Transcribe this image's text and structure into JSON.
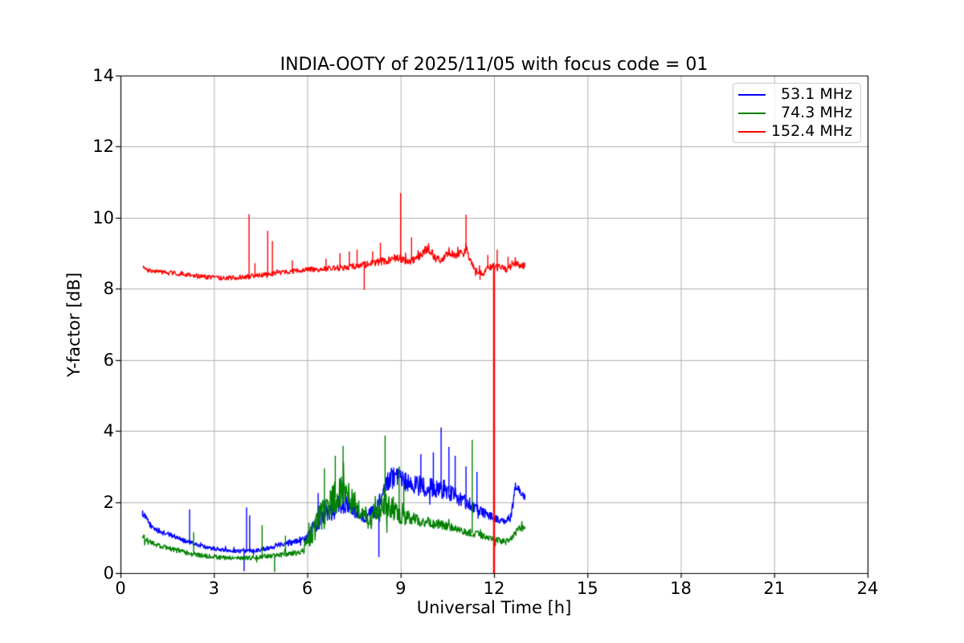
{
  "chart_data": {
    "type": "line",
    "title": "INDIA-OOTY of 2025/11/05 with focus code = 01",
    "xlabel": "Universal Time [h]",
    "ylabel": "Y-factor [dB]",
    "xlim": [
      0,
      24
    ],
    "ylim": [
      0,
      14
    ],
    "x_ticks": [
      0,
      3,
      6,
      9,
      12,
      15,
      18,
      21,
      24
    ],
    "y_ticks": [
      0,
      2,
      4,
      6,
      8,
      10,
      12,
      14
    ],
    "grid": true,
    "legend_position": "upper right",
    "colors": {
      "background": "#ffffff",
      "grid": "#b0b0b0",
      "axis": "#000000",
      "text": "#000000"
    },
    "series": [
      {
        "name": "53.1 MHz",
        "color": "#0000ff",
        "x_start": 0.7,
        "x_end": 13.0,
        "baseline": [
          [
            0.7,
            1.7,
            0.1
          ],
          [
            0.85,
            1.5,
            0.1
          ],
          [
            1.0,
            1.3,
            0.09
          ],
          [
            1.3,
            1.15,
            0.08
          ],
          [
            1.7,
            1.05,
            0.07
          ],
          [
            2.1,
            0.9,
            0.07
          ],
          [
            2.5,
            0.78,
            0.06
          ],
          [
            2.9,
            0.7,
            0.06
          ],
          [
            3.3,
            0.65,
            0.06
          ],
          [
            3.7,
            0.62,
            0.06
          ],
          [
            4.1,
            0.62,
            0.06
          ],
          [
            4.5,
            0.66,
            0.07
          ],
          [
            4.9,
            0.75,
            0.08
          ],
          [
            5.3,
            0.85,
            0.08
          ],
          [
            5.7,
            0.92,
            0.09
          ],
          [
            6.0,
            1.0,
            0.12
          ],
          [
            6.2,
            1.3,
            0.2
          ],
          [
            6.5,
            1.55,
            0.28
          ],
          [
            6.8,
            1.75,
            0.3
          ],
          [
            7.1,
            1.95,
            0.3
          ],
          [
            7.3,
            1.9,
            0.28
          ],
          [
            7.6,
            1.7,
            0.22
          ],
          [
            7.9,
            1.6,
            0.2
          ],
          [
            8.2,
            1.75,
            0.22
          ],
          [
            8.45,
            2.2,
            0.3
          ],
          [
            8.65,
            2.7,
            0.33
          ],
          [
            8.9,
            2.65,
            0.3
          ],
          [
            9.2,
            2.55,
            0.3
          ],
          [
            9.6,
            2.45,
            0.3
          ],
          [
            10.0,
            2.4,
            0.28
          ],
          [
            10.4,
            2.35,
            0.3
          ],
          [
            10.8,
            2.15,
            0.25
          ],
          [
            11.2,
            1.95,
            0.2
          ],
          [
            11.6,
            1.72,
            0.15
          ],
          [
            12.0,
            1.55,
            0.12
          ],
          [
            12.3,
            1.45,
            0.1
          ],
          [
            12.55,
            1.55,
            0.15
          ],
          [
            12.68,
            2.4,
            0.18
          ],
          [
            12.8,
            2.35,
            0.15
          ],
          [
            13.0,
            2.15,
            0.12
          ]
        ],
        "spikes": [
          [
            2.22,
            1.79
          ],
          [
            3.97,
            0.05
          ],
          [
            4.05,
            1.85
          ],
          [
            4.15,
            1.62
          ],
          [
            6.35,
            2.25
          ],
          [
            7.15,
            2.6
          ],
          [
            8.3,
            0.45
          ],
          [
            9.65,
            3.35
          ],
          [
            10.05,
            3.4
          ],
          [
            10.3,
            4.1
          ],
          [
            10.55,
            3.55
          ],
          [
            10.75,
            3.3
          ],
          [
            11.1,
            3.0
          ],
          [
            11.45,
            2.85
          ]
        ],
        "vertical_drops": []
      },
      {
        "name": "74.3 MHz",
        "color": "#008000",
        "x_start": 0.7,
        "x_end": 13.0,
        "baseline": [
          [
            0.7,
            1.02,
            0.1
          ],
          [
            0.9,
            0.88,
            0.09
          ],
          [
            1.2,
            0.78,
            0.08
          ],
          [
            1.6,
            0.68,
            0.08
          ],
          [
            2.0,
            0.6,
            0.08
          ],
          [
            2.4,
            0.52,
            0.07
          ],
          [
            2.8,
            0.47,
            0.07
          ],
          [
            3.2,
            0.44,
            0.07
          ],
          [
            3.6,
            0.42,
            0.07
          ],
          [
            4.0,
            0.42,
            0.07
          ],
          [
            4.4,
            0.45,
            0.08
          ],
          [
            4.8,
            0.48,
            0.08
          ],
          [
            5.2,
            0.52,
            0.08
          ],
          [
            5.6,
            0.57,
            0.09
          ],
          [
            5.9,
            0.65,
            0.12
          ],
          [
            6.1,
            1.05,
            0.35
          ],
          [
            6.4,
            1.55,
            0.45
          ],
          [
            6.7,
            1.85,
            0.5
          ],
          [
            7.0,
            2.25,
            0.5
          ],
          [
            7.2,
            2.35,
            0.5
          ],
          [
            7.45,
            2.0,
            0.42
          ],
          [
            7.7,
            1.7,
            0.35
          ],
          [
            8.0,
            1.5,
            0.3
          ],
          [
            8.3,
            1.75,
            0.4
          ],
          [
            8.5,
            2.05,
            0.45
          ],
          [
            8.7,
            1.8,
            0.35
          ],
          [
            9.0,
            1.6,
            0.25
          ],
          [
            9.4,
            1.52,
            0.2
          ],
          [
            9.8,
            1.45,
            0.17
          ],
          [
            10.2,
            1.38,
            0.15
          ],
          [
            10.6,
            1.28,
            0.13
          ],
          [
            11.0,
            1.2,
            0.12
          ],
          [
            11.4,
            1.1,
            0.11
          ],
          [
            11.8,
            1.0,
            0.1
          ],
          [
            12.1,
            0.93,
            0.1
          ],
          [
            12.4,
            0.88,
            0.1
          ],
          [
            12.6,
            1.05,
            0.12
          ],
          [
            12.8,
            1.25,
            0.1
          ],
          [
            13.0,
            1.27,
            0.1
          ]
        ],
        "spikes": [
          [
            2.35,
            1.15
          ],
          [
            4.55,
            1.35
          ],
          [
            4.95,
            0.03
          ],
          [
            5.3,
            1.05
          ],
          [
            6.55,
            2.95
          ],
          [
            6.9,
            3.3
          ],
          [
            7.15,
            3.58
          ],
          [
            8.5,
            3.87
          ],
          [
            8.95,
            3.0
          ],
          [
            9.1,
            2.5
          ],
          [
            11.3,
            3.75
          ]
        ],
        "vertical_drops": []
      },
      {
        "name": "152.4 MHz",
        "color": "#ff0000",
        "x_start": 0.72,
        "x_end": 13.0,
        "baseline": [
          [
            0.72,
            8.6,
            0.06
          ],
          [
            0.85,
            8.52,
            0.06
          ],
          [
            1.2,
            8.48,
            0.06
          ],
          [
            1.6,
            8.45,
            0.07
          ],
          [
            2.0,
            8.42,
            0.07
          ],
          [
            2.4,
            8.36,
            0.07
          ],
          [
            2.8,
            8.33,
            0.07
          ],
          [
            3.2,
            8.3,
            0.07
          ],
          [
            3.6,
            8.31,
            0.07
          ],
          [
            4.0,
            8.34,
            0.07
          ],
          [
            4.4,
            8.38,
            0.07
          ],
          [
            4.8,
            8.42,
            0.07
          ],
          [
            5.2,
            8.46,
            0.07
          ],
          [
            5.6,
            8.5,
            0.08
          ],
          [
            6.0,
            8.54,
            0.08
          ],
          [
            6.4,
            8.55,
            0.08
          ],
          [
            6.8,
            8.58,
            0.09
          ],
          [
            7.2,
            8.6,
            0.09
          ],
          [
            7.6,
            8.64,
            0.1
          ],
          [
            8.0,
            8.7,
            0.1
          ],
          [
            8.4,
            8.78,
            0.12
          ],
          [
            8.7,
            8.84,
            0.12
          ],
          [
            9.0,
            8.86,
            0.12
          ],
          [
            9.3,
            8.78,
            0.12
          ],
          [
            9.6,
            8.9,
            0.13
          ],
          [
            9.9,
            9.15,
            0.15
          ],
          [
            10.1,
            8.85,
            0.12
          ],
          [
            10.35,
            8.8,
            0.12
          ],
          [
            10.55,
            9.05,
            0.13
          ],
          [
            10.75,
            8.9,
            0.12
          ],
          [
            11.0,
            9.0,
            0.15
          ],
          [
            11.1,
            9.15,
            0.15
          ],
          [
            11.25,
            8.8,
            0.12
          ],
          [
            11.45,
            8.5,
            0.1
          ],
          [
            11.65,
            8.45,
            0.1
          ],
          [
            11.85,
            8.6,
            0.12
          ],
          [
            12.1,
            8.62,
            0.12
          ],
          [
            12.4,
            8.55,
            0.1
          ],
          [
            12.7,
            8.72,
            0.1
          ],
          [
            12.85,
            8.65,
            0.1
          ],
          [
            13.0,
            8.68,
            0.08
          ]
        ],
        "spikes": [
          [
            4.13,
            10.1
          ],
          [
            4.32,
            8.72
          ],
          [
            4.73,
            9.63
          ],
          [
            4.88,
            9.34
          ],
          [
            5.52,
            8.8
          ],
          [
            6.6,
            8.85
          ],
          [
            7.05,
            9.0
          ],
          [
            7.35,
            9.05
          ],
          [
            7.6,
            9.1
          ],
          [
            7.83,
            7.97
          ],
          [
            8.1,
            9.05
          ],
          [
            8.35,
            9.3
          ],
          [
            9.0,
            10.7
          ],
          [
            9.35,
            9.45
          ],
          [
            11.1,
            10.09
          ],
          [
            11.55,
            8.25
          ],
          [
            11.8,
            8.95
          ],
          [
            12.1,
            9.1
          ],
          [
            12.45,
            8.9
          ]
        ],
        "vertical_drops": [
          [
            12.0,
            0.0
          ]
        ]
      }
    ]
  }
}
